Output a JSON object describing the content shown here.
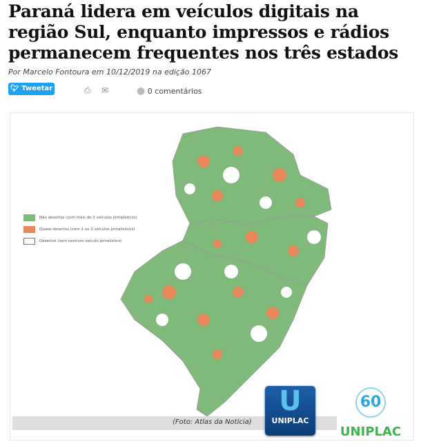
{
  "article": {
    "title": "Paraná lidera em veículos digitais na região Sul, enquanto impressos e rádios permanecem frequentes nos três estados",
    "byline": "Por Marcelo Fontoura em 10/12/2019 na edição 1067"
  },
  "share": {
    "tweet_label": "Tweetar",
    "comments_label": "0 comentários"
  },
  "icons": {
    "tweet": "twitter-bird-icon",
    "print": "printer-icon",
    "email": "envelope-icon",
    "comments": "speech-bubble-icon"
  },
  "map": {
    "legend": [
      {
        "label": "Não desertos (com mais de 3 veículos jornalísticos)",
        "color": "#7fba7a"
      },
      {
        "label": "Quase desertos (com 1 ou 2 veículos jornalísticos)",
        "color": "#e8875a"
      },
      {
        "label": "Desertos (sem nenhum veículo jornalístico)",
        "color": "#ffffff"
      }
    ],
    "caption": "(Foto: Atlas da Notícia)"
  },
  "logos": {
    "uniplac": "UNIPLAC",
    "uniplac_60": "60",
    "uniplac_60_text": "UNIPLAC"
  }
}
